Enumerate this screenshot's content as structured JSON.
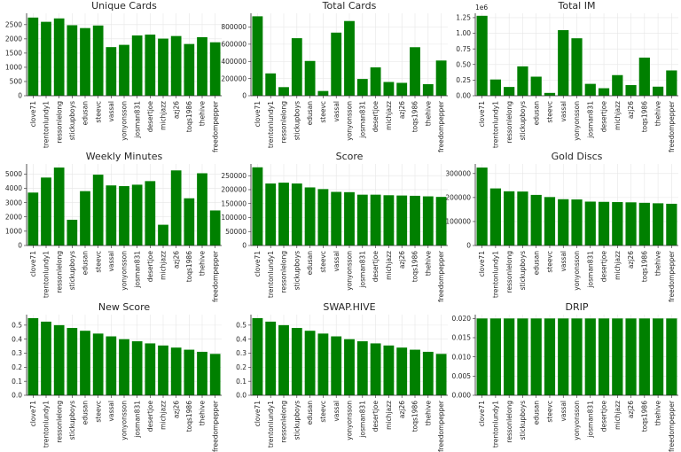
{
  "chart_data": [
    {
      "type": "bar",
      "title": "Unique Cards",
      "categories": [
        "clove71",
        "trentonlundy1",
        "ressonlelong",
        "stickupboys",
        "edusan",
        "steevc",
        "vassal",
        "yonyonsson",
        "josman831",
        "desertjoe",
        "michjazz",
        "azj26",
        "toqs1986",
        "thehive",
        "freedompepper"
      ],
      "values": [
        2750,
        2600,
        2720,
        2480,
        2380,
        2470,
        1710,
        1790,
        2120,
        2150,
        2010,
        2100,
        1820,
        2060,
        1880
      ],
      "ylim": [
        0,
        2900
      ],
      "yticks": [
        0,
        500,
        1000,
        1500,
        2000,
        2500
      ],
      "ytick_labels": [
        "0",
        "500",
        "1000",
        "1500",
        "2000",
        "2500"
      ],
      "scale_label": "",
      "color": "#008000",
      "grid": true
    },
    {
      "type": "bar",
      "title": "Total Cards",
      "categories": [
        "clove71",
        "trentonlundy1",
        "ressonlelong",
        "stickupboys",
        "edusan",
        "steevc",
        "vassal",
        "yonyonsson",
        "josman831",
        "desertjoe",
        "michjazz",
        "azj26",
        "toqs1986",
        "thehive",
        "freedompepper"
      ],
      "values": [
        925000,
        260000,
        100000,
        670000,
        405000,
        55000,
        735000,
        870000,
        195000,
        330000,
        160000,
        150000,
        565000,
        135000,
        410000
      ],
      "ylim": [
        0,
        960000
      ],
      "yticks": [
        0,
        200000,
        400000,
        600000,
        800000
      ],
      "ytick_labels": [
        "0",
        "200000",
        "400000",
        "600000",
        "800000"
      ],
      "scale_label": "",
      "color": "#008000",
      "grid": true
    },
    {
      "type": "bar",
      "title": "Total IM",
      "categories": [
        "clove71",
        "trentonlundy1",
        "ressonlelong",
        "stickupboys",
        "edusan",
        "steevc",
        "vassal",
        "yonyonsson",
        "josman831",
        "desertjoe",
        "michjazz",
        "azj26",
        "toqs1986",
        "thehive",
        "freedompepper"
      ],
      "values": [
        1280000,
        260000,
        140000,
        470000,
        305000,
        45000,
        1050000,
        920000,
        190000,
        120000,
        330000,
        170000,
        610000,
        145000,
        405000
      ],
      "ylim": [
        0,
        1320000
      ],
      "yticks": [
        0,
        250000,
        500000,
        750000,
        1000000,
        1250000
      ],
      "ytick_labels": [
        "0.00",
        "0.25",
        "0.50",
        "0.75",
        "1.00",
        "1.25"
      ],
      "scale_label": "1e6",
      "color": "#008000",
      "grid": true
    },
    {
      "type": "bar",
      "title": "Weekly Minutes",
      "categories": [
        "clove71",
        "trentonlundy1",
        "ressonlelong",
        "stickupboys",
        "edusan",
        "steevc",
        "vassal",
        "yonyonsson",
        "josman831",
        "desertjoe",
        "michjazz",
        "azj26",
        "toqs1986",
        "thehive",
        "freedompepper"
      ],
      "values": [
        3700,
        4750,
        5450,
        1800,
        3800,
        4950,
        4200,
        4150,
        4250,
        4500,
        1450,
        5250,
        3300,
        5050,
        2450
      ],
      "ylim": [
        0,
        5700
      ],
      "yticks": [
        0,
        1000,
        2000,
        3000,
        4000,
        5000
      ],
      "ytick_labels": [
        "0",
        "1000",
        "2000",
        "3000",
        "4000",
        "5000"
      ],
      "scale_label": "",
      "color": "#008000",
      "grid": true
    },
    {
      "type": "bar",
      "title": "Score",
      "categories": [
        "clove71",
        "trentonlundy1",
        "ressonlelong",
        "stickupboys",
        "edusan",
        "steevc",
        "vassal",
        "yonyonsson",
        "josman831",
        "desertjoe",
        "michjazz",
        "azj26",
        "toqs1986",
        "thehive",
        "freedompepper"
      ],
      "values": [
        280000,
        222000,
        225000,
        222000,
        208000,
        202000,
        192000,
        191000,
        182000,
        182000,
        180000,
        179000,
        178000,
        176000,
        174000
      ],
      "ylim": [
        0,
        292000
      ],
      "yticks": [
        0,
        50000,
        100000,
        150000,
        200000,
        250000
      ],
      "ytick_labels": [
        "0",
        "50000",
        "100000",
        "150000",
        "200000",
        "250000"
      ],
      "scale_label": "",
      "color": "#008000",
      "grid": true
    },
    {
      "type": "bar",
      "title": "Gold Discs",
      "categories": [
        "clove71",
        "trentonlundy1",
        "ressonlelong",
        "stickupboys",
        "edusan",
        "steevc",
        "vassal",
        "yonyonsson",
        "josman831",
        "desertjoe",
        "michjazz",
        "azj26",
        "toqs1986",
        "thehive",
        "freedompepper"
      ],
      "values": [
        325000,
        238000,
        226000,
        225000,
        211000,
        202000,
        193000,
        192000,
        183000,
        182000,
        181000,
        180000,
        178000,
        176000,
        174000
      ],
      "ylim": [
        0,
        340000
      ],
      "yticks": [
        0,
        100000,
        200000,
        300000
      ],
      "ytick_labels": [
        "0",
        "100000",
        "200000",
        "300000"
      ],
      "scale_label": "",
      "color": "#008000",
      "grid": true
    },
    {
      "type": "bar",
      "title": "New Score",
      "categories": [
        "clove71",
        "trentonlundy1",
        "ressonlelong",
        "stickupboys",
        "edusan",
        "steevc",
        "vassal",
        "yonyonsson",
        "josman831",
        "desertjoe",
        "michjazz",
        "azj26",
        "toqs1986",
        "thehive",
        "freedompepper"
      ],
      "values": [
        0.55,
        0.525,
        0.5,
        0.48,
        0.46,
        0.44,
        0.42,
        0.4,
        0.385,
        0.37,
        0.355,
        0.34,
        0.325,
        0.31,
        0.295
      ],
      "ylim": [
        0,
        0.575
      ],
      "yticks": [
        0,
        0.1,
        0.2,
        0.3,
        0.4,
        0.5
      ],
      "ytick_labels": [
        "0.0",
        "0.1",
        "0.2",
        "0.3",
        "0.4",
        "0.5"
      ],
      "scale_label": "",
      "color": "#008000",
      "grid": true
    },
    {
      "type": "bar",
      "title": "SWAP.HIVE",
      "categories": [
        "clove71",
        "trentonlundy1",
        "ressonlelong",
        "stickupboys",
        "edusan",
        "steevc",
        "vassal",
        "yonyonsson",
        "josman831",
        "desertjoe",
        "michjazz",
        "azj26",
        "toqs1986",
        "thehive",
        "freedompepper"
      ],
      "values": [
        0.55,
        0.525,
        0.5,
        0.48,
        0.46,
        0.44,
        0.42,
        0.4,
        0.385,
        0.37,
        0.355,
        0.34,
        0.325,
        0.31,
        0.295
      ],
      "ylim": [
        0,
        0.575
      ],
      "yticks": [
        0,
        0.1,
        0.2,
        0.3,
        0.4,
        0.5
      ],
      "ytick_labels": [
        "0.0",
        "0.1",
        "0.2",
        "0.3",
        "0.4",
        "0.5"
      ],
      "scale_label": "",
      "color": "#008000",
      "grid": true
    },
    {
      "type": "bar",
      "title": "DRIP",
      "categories": [
        "clove71",
        "trentonlundy1",
        "ressonlelong",
        "stickupboys",
        "edusan",
        "steevc",
        "vassal",
        "yonyonsson",
        "josman831",
        "desertjoe",
        "michjazz",
        "azj26",
        "toqs1986",
        "thehive",
        "freedompepper"
      ],
      "values": [
        0.02,
        0.02,
        0.02,
        0.02,
        0.02,
        0.02,
        0.02,
        0.02,
        0.02,
        0.02,
        0.02,
        0.02,
        0.02,
        0.02,
        0.02
      ],
      "ylim": [
        0,
        0.021
      ],
      "yticks": [
        0,
        0.005,
        0.01,
        0.015,
        0.02
      ],
      "ytick_labels": [
        "0.000",
        "0.005",
        "0.010",
        "0.015",
        "0.020"
      ],
      "scale_label": "",
      "color": "#008000",
      "grid": true
    }
  ]
}
